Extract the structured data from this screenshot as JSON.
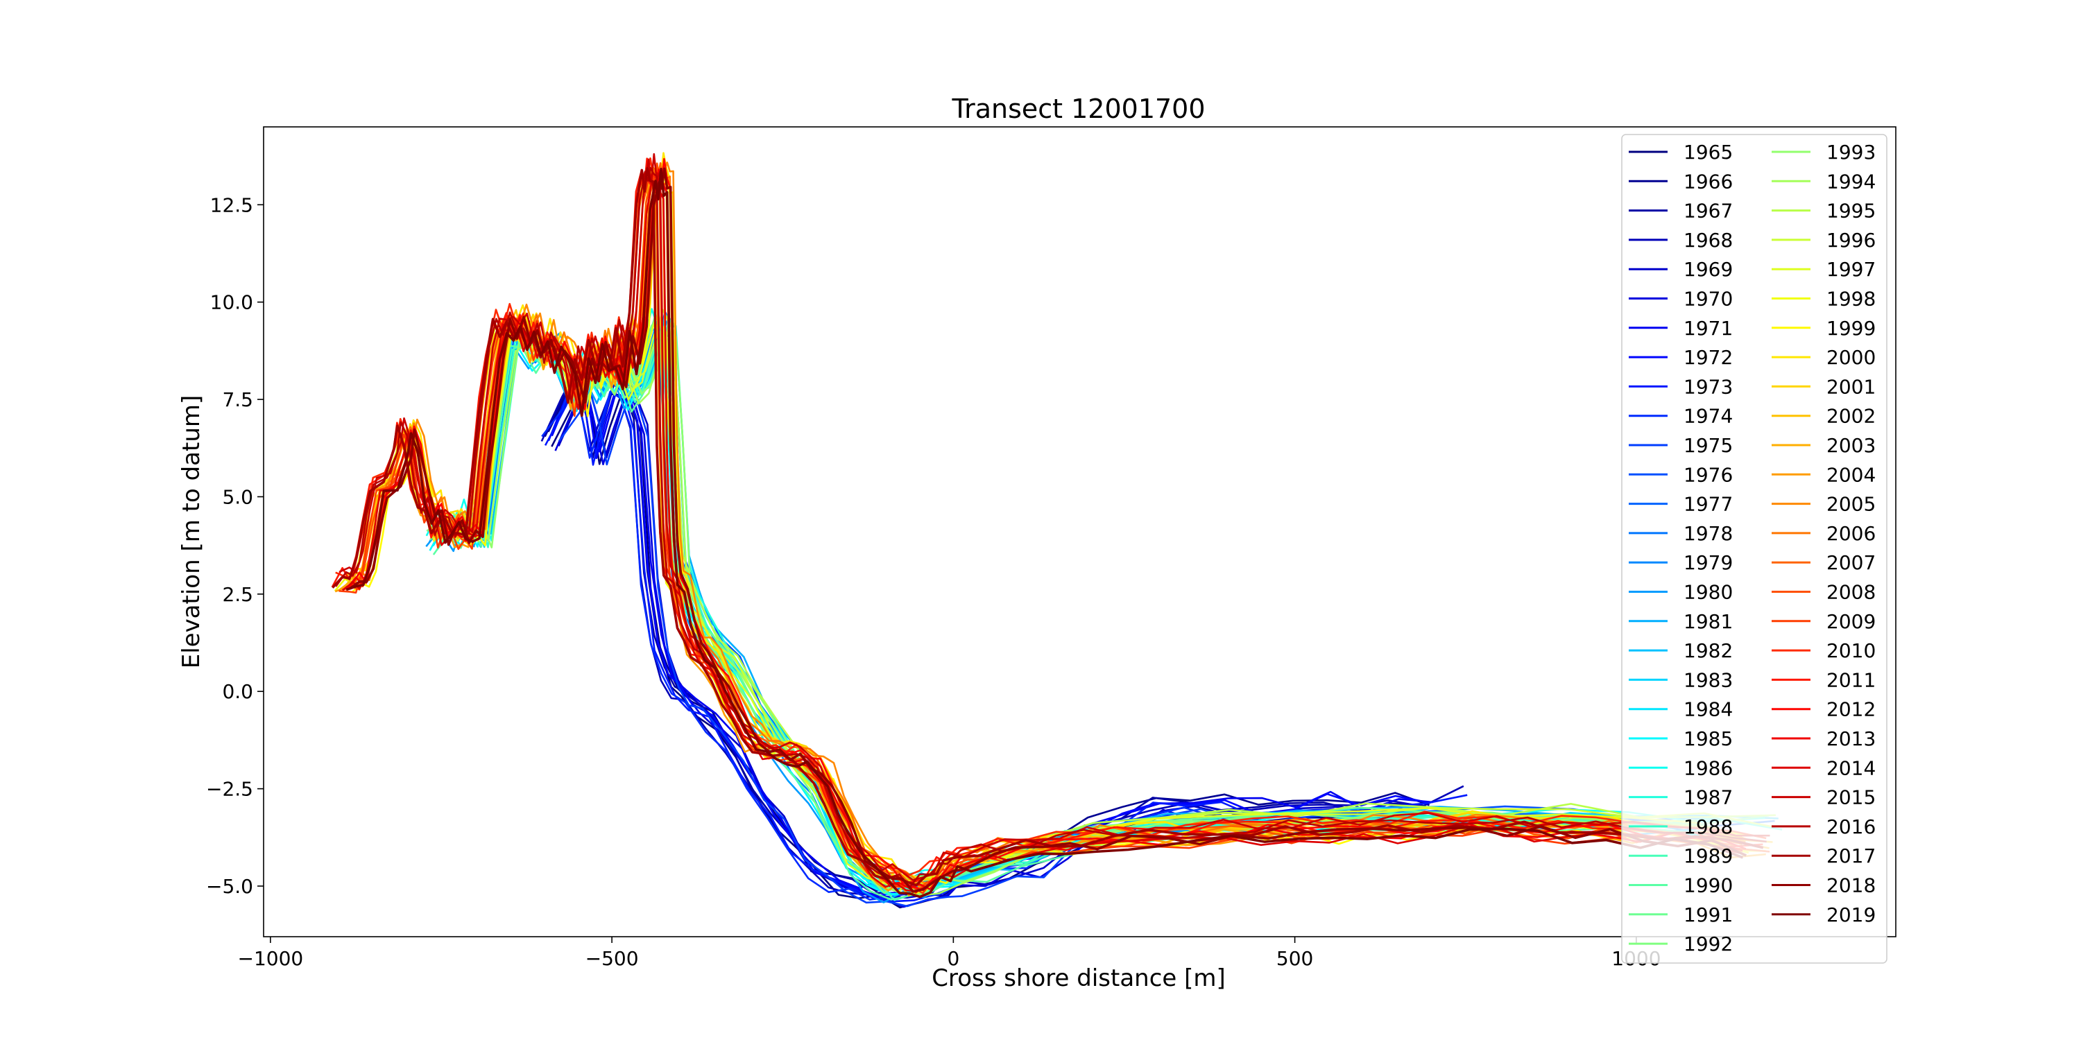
{
  "chart_data": {
    "type": "line",
    "title": "Transect 12001700",
    "xlabel": "Cross shore distance [m]",
    "ylabel": "Elevation [m to datum]",
    "xlim": [
      -1010,
      1380
    ],
    "ylim": [
      -6.3,
      14.5
    ],
    "x_ticks": [
      -1000,
      -500,
      0,
      500,
      1000
    ],
    "x_tick_labels": [
      "−1000",
      "−500",
      "0",
      "500",
      "1000"
    ],
    "y_ticks": [
      -5.0,
      -2.5,
      0.0,
      2.5,
      5.0,
      7.5,
      10.0,
      12.5
    ],
    "y_tick_labels": [
      "−5.0",
      "−2.5",
      "0.0",
      "2.5",
      "5.0",
      "7.5",
      "10.0",
      "12.5"
    ],
    "grid": false,
    "legend_position": "top-right",
    "legend_columns": 2,
    "colormap": "jet",
    "series": [
      {
        "name": "1965"
      },
      {
        "name": "1966"
      },
      {
        "name": "1967"
      },
      {
        "name": "1968"
      },
      {
        "name": "1969"
      },
      {
        "name": "1970"
      },
      {
        "name": "1971"
      },
      {
        "name": "1972"
      },
      {
        "name": "1973"
      },
      {
        "name": "1974"
      },
      {
        "name": "1975"
      },
      {
        "name": "1976"
      },
      {
        "name": "1977"
      },
      {
        "name": "1978"
      },
      {
        "name": "1979"
      },
      {
        "name": "1980"
      },
      {
        "name": "1981"
      },
      {
        "name": "1982"
      },
      {
        "name": "1983"
      },
      {
        "name": "1984"
      },
      {
        "name": "1985"
      },
      {
        "name": "1986"
      },
      {
        "name": "1987"
      },
      {
        "name": "1988"
      },
      {
        "name": "1989"
      },
      {
        "name": "1990"
      },
      {
        "name": "1991"
      },
      {
        "name": "1992"
      },
      {
        "name": "1993"
      },
      {
        "name": "1994"
      },
      {
        "name": "1995"
      },
      {
        "name": "1996"
      },
      {
        "name": "1997"
      },
      {
        "name": "1998"
      },
      {
        "name": "1999"
      },
      {
        "name": "2000"
      },
      {
        "name": "2001"
      },
      {
        "name": "2002"
      },
      {
        "name": "2003"
      },
      {
        "name": "2004"
      },
      {
        "name": "2005"
      },
      {
        "name": "2006"
      },
      {
        "name": "2007"
      },
      {
        "name": "2008"
      },
      {
        "name": "2009"
      },
      {
        "name": "2010"
      },
      {
        "name": "2011"
      },
      {
        "name": "2012"
      },
      {
        "name": "2013"
      },
      {
        "name": "2014"
      },
      {
        "name": "2015"
      },
      {
        "name": "2016"
      },
      {
        "name": "2017"
      },
      {
        "name": "2018"
      },
      {
        "name": "2019"
      }
    ],
    "profile_templates": {
      "early": {
        "x": [
          -590,
          -560,
          -545,
          -530,
          -520,
          -505,
          -490,
          -475,
          -460,
          -445,
          -430,
          -415,
          -400,
          -380,
          -350,
          -320,
          -290,
          -260,
          -230,
          -200,
          -170,
          -140,
          -110,
          -80,
          -50,
          -20,
          0,
          40,
          80,
          120,
          160,
          200,
          250,
          300,
          350,
          400,
          450,
          500,
          550,
          600,
          650,
          700,
          760
        ],
        "y": [
          6.5,
          7.5,
          8.0,
          7.0,
          6.0,
          7.0,
          7.8,
          7.5,
          6.8,
          3.0,
          1.2,
          0.4,
          0.0,
          -0.3,
          -0.8,
          -1.5,
          -2.4,
          -3.2,
          -4.0,
          -4.6,
          -4.9,
          -5.1,
          -5.2,
          -5.25,
          -5.2,
          -5.1,
          -4.9,
          -4.7,
          -4.5,
          -4.4,
          -4.0,
          -3.6,
          -3.3,
          -3.0,
          -2.95,
          -3.0,
          -3.1,
          -3.0,
          -2.9,
          -3.1,
          -2.9,
          -3.0,
          -2.5
        ]
      },
      "middle": {
        "x": [
          -760,
          -740,
          -720,
          -705,
          -690,
          -670,
          -650,
          -630,
          -610,
          -590,
          -570,
          -550,
          -530,
          -510,
          -490,
          -470,
          -455,
          -440,
          -430,
          -420,
          -410,
          -400,
          -385,
          -370,
          -350,
          -320,
          -290,
          -260,
          -230,
          -200,
          -175,
          -150,
          -120,
          -90,
          -60,
          -30,
          0,
          50,
          100,
          150,
          200,
          300,
          400,
          500,
          600,
          700,
          800,
          900,
          1000,
          1100,
          1200
        ],
        "y": [
          3.9,
          4.4,
          4.0,
          4.6,
          3.9,
          6.5,
          9.0,
          9.2,
          8.6,
          8.9,
          8.3,
          7.5,
          8.4,
          7.8,
          8.6,
          7.6,
          7.9,
          8.8,
          9.5,
          9.2,
          6.5,
          3.2,
          2.4,
          1.8,
          1.2,
          0.6,
          -0.4,
          -1.2,
          -1.9,
          -2.5,
          -3.4,
          -4.3,
          -4.8,
          -5.1,
          -5.0,
          -4.9,
          -4.75,
          -4.5,
          -4.2,
          -3.9,
          -3.7,
          -3.45,
          -3.35,
          -3.3,
          -3.25,
          -3.2,
          -3.3,
          -3.25,
          -3.35,
          -3.4,
          -3.5
        ]
      },
      "late": {
        "x": [
          -895,
          -880,
          -870,
          -860,
          -850,
          -840,
          -820,
          -805,
          -800,
          -790,
          -780,
          -770,
          -760,
          -750,
          -740,
          -730,
          -720,
          -710,
          -700,
          -690,
          -680,
          -670,
          -660,
          -650,
          -640,
          -630,
          -620,
          -610,
          -600,
          -590,
          -580,
          -570,
          -560,
          -550,
          -540,
          -530,
          -520,
          -510,
          -500,
          -490,
          -480,
          -470,
          -460,
          -450,
          -442,
          -438,
          -434,
          -430,
          -425,
          -420,
          -415,
          -410,
          -400,
          -390,
          -380,
          -370,
          -355,
          -340,
          -325,
          -310,
          -295,
          -280,
          -265,
          -250,
          -235,
          -220,
          -205,
          -190,
          -175,
          -160,
          -140,
          -120,
          -100,
          -85,
          -70,
          -55,
          -40,
          -25,
          -10,
          0,
          20,
          50,
          80,
          120,
          160,
          200,
          250,
          300,
          350,
          400,
          450,
          500,
          550,
          600,
          650,
          700,
          750,
          800,
          850,
          900,
          950,
          1000,
          1050,
          1100,
          1150,
          1200
        ],
        "y": [
          2.7,
          2.9,
          2.8,
          3.4,
          4.3,
          5.2,
          5.4,
          6.2,
          6.8,
          6.3,
          5.2,
          4.6,
          4.8,
          4.0,
          4.3,
          4.4,
          4.0,
          4.1,
          4.0,
          5.8,
          7.3,
          8.6,
          9.5,
          9.2,
          9.6,
          9.1,
          9.4,
          8.7,
          9.2,
          8.5,
          9.0,
          8.7,
          8.3,
          7.4,
          8.6,
          8.1,
          9.0,
          8.3,
          8.6,
          8.1,
          9.3,
          8.5,
          9.6,
          12.6,
          13.3,
          13.0,
          13.5,
          13.1,
          13.0,
          6.5,
          4.0,
          3.0,
          2.6,
          1.8,
          1.3,
          1.0,
          0.7,
          0.3,
          -0.3,
          -0.8,
          -1.2,
          -1.4,
          -1.5,
          -1.55,
          -1.6,
          -1.7,
          -1.9,
          -2.2,
          -2.8,
          -3.4,
          -4.1,
          -4.4,
          -4.7,
          -4.8,
          -4.9,
          -5.0,
          -4.85,
          -4.7,
          -4.5,
          -4.4,
          -4.3,
          -4.15,
          -4.05,
          -3.95,
          -3.85,
          -3.8,
          -3.75,
          -3.72,
          -3.7,
          -3.6,
          -3.58,
          -3.55,
          -3.6,
          -3.5,
          -3.55,
          -3.45,
          -3.42,
          -3.45,
          -3.5,
          -3.55,
          -3.6,
          -3.65,
          -3.7,
          -3.85,
          -3.95,
          -4.05
        ]
      }
    }
  }
}
